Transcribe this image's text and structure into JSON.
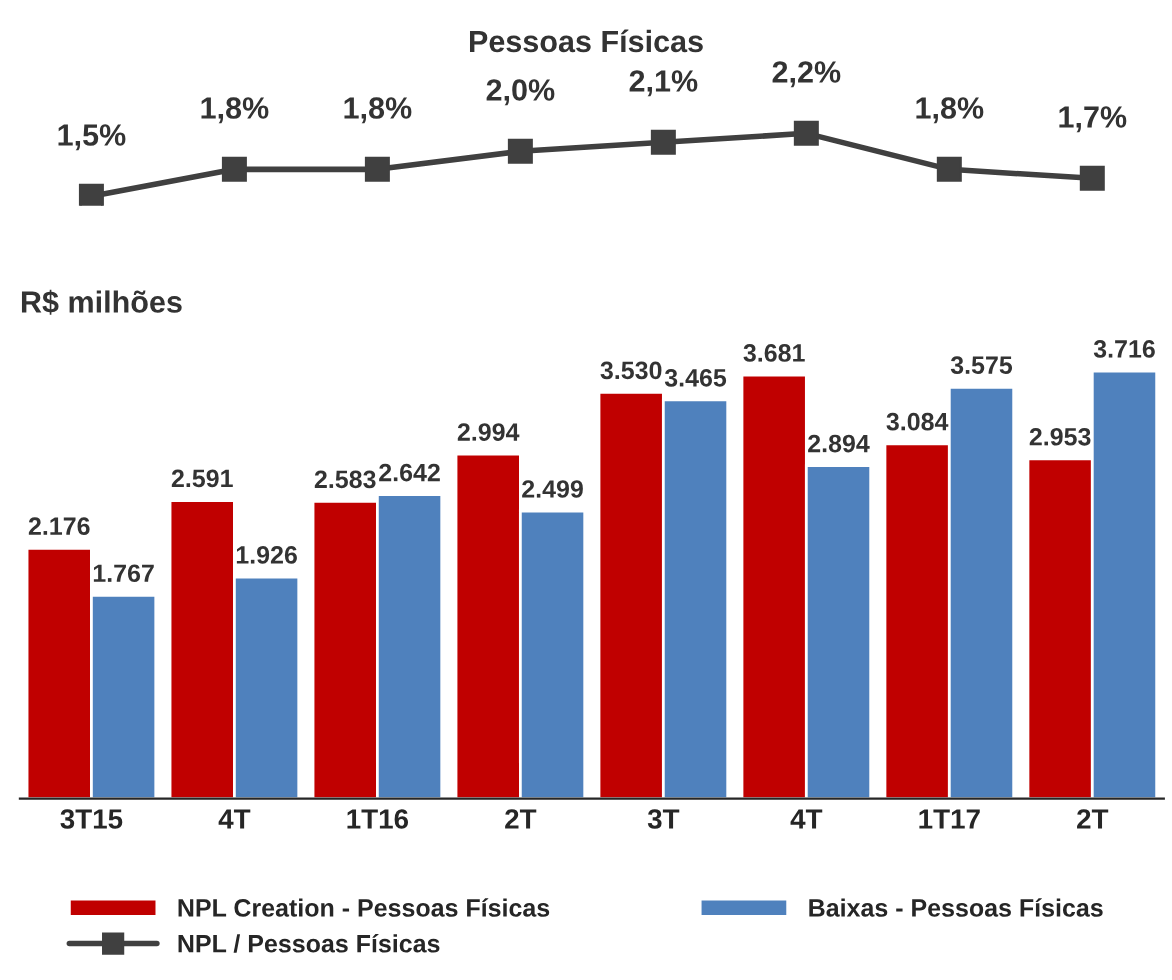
{
  "chart_data": [
    {
      "type": "line",
      "title": "Pessoas Físicas",
      "tick_labels": false,
      "marker": "square",
      "line_style": "solid",
      "legend": "bottom",
      "series": [
        {
          "name": "NPL / Pessoas Físicas",
          "color": "#404040",
          "values": [
            1.5,
            1.8,
            1.8,
            2.0,
            2.1,
            2.2,
            1.8,
            1.7
          ],
          "value_labels": [
            "1,5%",
            "1,8%",
            "1,8%",
            "2,0%",
            "2,1%",
            "2,2%",
            "1,8%",
            "1,7%"
          ]
        }
      ]
    },
    {
      "type": "bar",
      "ylabel": "R$ milhões",
      "categories": [
        "3T15",
        "4T",
        "1T16",
        "2T",
        "3T",
        "4T",
        "1T17",
        "2T"
      ],
      "tick_labels": "x",
      "legend": "bottom",
      "series": [
        {
          "name": "NPL Creation - Pessoas Físicas",
          "color": "#c00000",
          "values": [
            2176,
            2591,
            2583,
            2994,
            3530,
            3681,
            3084,
            2953
          ],
          "value_labels": [
            "2.176",
            "2.591",
            "2.583",
            "2.994",
            "3.530",
            "3.681",
            "3.084",
            "2.953"
          ]
        },
        {
          "name": "Baixas - Pessoas Físicas",
          "color": "#4f81bd",
          "values": [
            1767,
            1926,
            2642,
            2499,
            3465,
            2894,
            3575,
            3716
          ],
          "value_labels": [
            "1.767",
            "1.926",
            "2.642",
            "2.499",
            "3.465",
            "2.894",
            "3.575",
            "3.716"
          ]
        }
      ]
    }
  ]
}
